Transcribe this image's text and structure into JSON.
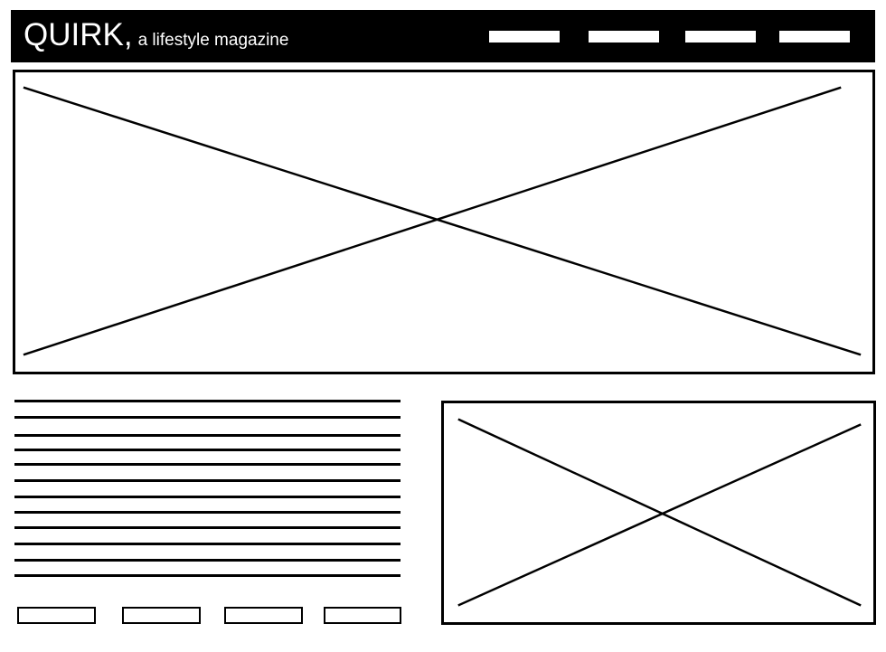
{
  "header": {
    "brand_name": "QUIRK,",
    "tagline": "a lifestyle magazine",
    "nav_items": [
      "",
      "",
      "",
      ""
    ],
    "colors": {
      "bar": "#000000",
      "text": "#ffffff",
      "nav_placeholder": "#ffffff"
    }
  },
  "hero": {
    "type": "image-placeholder",
    "icon": "crossed-box-icon"
  },
  "article": {
    "text_line_count": 12
  },
  "feature": {
    "type": "image-placeholder",
    "icon": "crossed-box-icon"
  },
  "footer_buttons": [
    "",
    "",
    "",
    ""
  ]
}
